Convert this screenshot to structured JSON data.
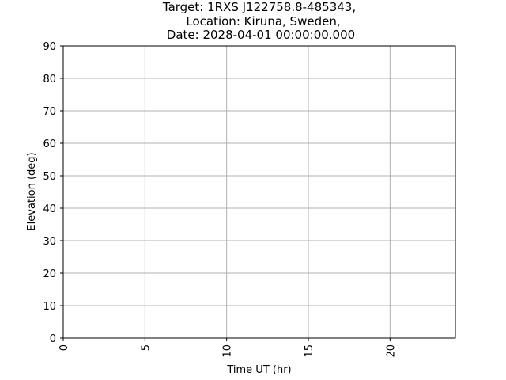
{
  "chart_data": {
    "type": "line",
    "title_lines": [
      "Target: 1RXS J122758.8-485343,",
      "Location: Kiruna, Sweden,",
      "Date: 2028-04-01 00:00:00.000"
    ],
    "xlabel": "Time UT (hr)",
    "ylabel": "Elevation (deg)",
    "xlim": [
      0,
      24
    ],
    "ylim": [
      0,
      90
    ],
    "xticks": [
      0,
      5,
      10,
      15,
      20
    ],
    "yticks": [
      0,
      10,
      20,
      30,
      40,
      50,
      60,
      70,
      80,
      90
    ],
    "grid": true,
    "series": []
  }
}
